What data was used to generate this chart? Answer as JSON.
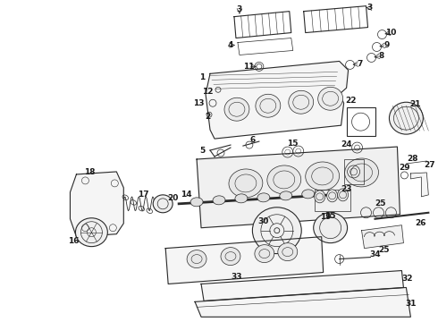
{
  "background_color": "#ffffff",
  "line_color": "#2a2a2a",
  "label_color": "#1a1a1a",
  "fig_width": 4.9,
  "fig_height": 3.6,
  "dpi": 100
}
